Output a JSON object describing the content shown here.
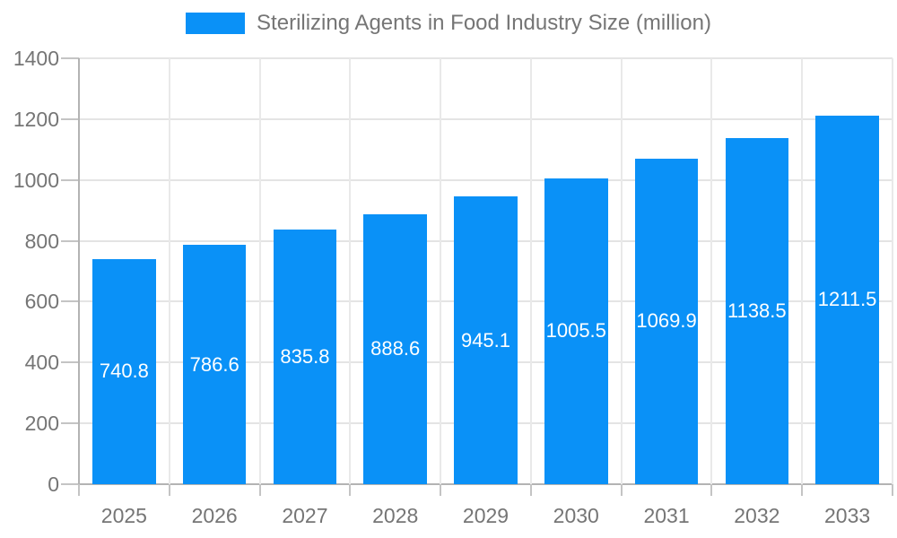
{
  "legend": {
    "label": "Sterilizing Agents in Food Industry Size (million)"
  },
  "colors": {
    "bar": "#0a91f7",
    "grid": "#e4e4e4",
    "separator": "#e9e9e9",
    "axis": "#b3b3b3",
    "tick": "#c4c4c4",
    "text": "#757575",
    "value_label": "#ffffff"
  },
  "chart_data": {
    "type": "bar",
    "title": "Sterilizing Agents in Food Industry Size (million)",
    "categories": [
      "2025",
      "2026",
      "2027",
      "2028",
      "2029",
      "2030",
      "2031",
      "2032",
      "2033"
    ],
    "values": [
      740.8,
      786.6,
      835.8,
      888.6,
      945.1,
      1005.5,
      1069.9,
      1138.5,
      1211.5
    ],
    "value_labels": [
      "740.8",
      "786.6",
      "835.8",
      "888.6",
      "945.1",
      "1005.5",
      "1069.9",
      "1138.5",
      "1211.5"
    ],
    "xlabel": "",
    "ylabel": "",
    "ylim": [
      0,
      1400
    ],
    "yticks": [
      0,
      200,
      400,
      600,
      800,
      1000,
      1200,
      1400
    ],
    "grid": true,
    "legend_position": "top",
    "value_label_position": "inside-center"
  }
}
